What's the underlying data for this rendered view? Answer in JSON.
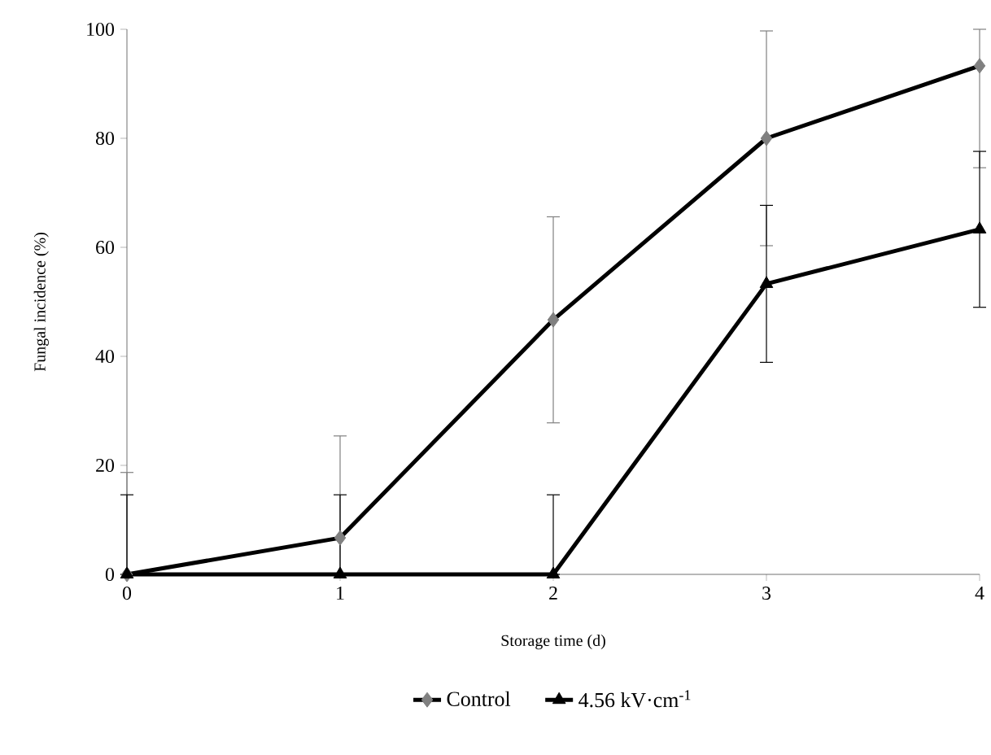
{
  "chart_data": {
    "type": "line",
    "xlabel": "Storage time (d)",
    "ylabel": "Fungal incidence (%)",
    "x": [
      0,
      1,
      2,
      3,
      4
    ],
    "series": [
      {
        "name": "Control",
        "color": "#808080",
        "marker": "diamond",
        "values": [
          0,
          6.7,
          46.7,
          80,
          93.3
        ],
        "errors": [
          [
            0,
            18.7
          ],
          [
            0,
            25.4
          ],
          18.9,
          19.7,
          [
            74.6,
            100
          ]
        ]
      },
      {
        "name": "4.56 kV·cm$^{-1}$",
        "color": "#000000",
        "marker": "triangle",
        "values": [
          0,
          0,
          0,
          53.3,
          63.3
        ],
        "errors": [
          [
            0,
            14.6
          ],
          [
            0,
            14.6
          ],
          [
            0,
            14.6
          ],
          14.4,
          14.3
        ]
      }
    ],
    "xlim": [
      0,
      4
    ],
    "xticks": [
      0,
      1,
      2,
      3,
      4
    ],
    "ylim": [
      0,
      100
    ],
    "yticks": [
      0,
      20,
      40,
      60,
      80,
      100
    ],
    "grid": false,
    "legend": "bottom",
    "line_style": "solid"
  }
}
